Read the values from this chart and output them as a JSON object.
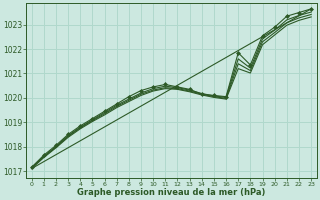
{
  "background_color": "#cce8e0",
  "line_color": "#2d5a27",
  "grid_color": "#b0d8cc",
  "xlabel": "Graphe pression niveau de la mer (hPa)",
  "xlim": [
    -0.5,
    23.5
  ],
  "ylim": [
    1016.7,
    1023.9
  ],
  "yticks": [
    1017,
    1018,
    1019,
    1020,
    1021,
    1022,
    1023
  ],
  "xticks": [
    0,
    1,
    2,
    3,
    4,
    5,
    6,
    7,
    8,
    9,
    10,
    11,
    12,
    13,
    14,
    15,
    16,
    17,
    18,
    19,
    20,
    21,
    22,
    23
  ],
  "series": [
    {
      "x": [
        0,
        1,
        2,
        3,
        4,
        5,
        6,
        7,
        8,
        9,
        10,
        11,
        12,
        13,
        14,
        15,
        16,
        17,
        18,
        19,
        20,
        21,
        22,
        23
      ],
      "y": [
        1017.15,
        1017.65,
        1018.05,
        1018.5,
        1018.85,
        1019.15,
        1019.45,
        1019.75,
        1020.05,
        1020.3,
        1020.45,
        1020.55,
        1020.45,
        1020.35,
        1020.15,
        1020.1,
        1020.05,
        1021.85,
        1021.35,
        1022.55,
        1022.9,
        1023.35,
        1023.5,
        1023.65
      ],
      "marker": true
    },
    {
      "x": [
        0,
        1,
        2,
        3,
        4,
        5,
        6,
        7,
        8,
        9,
        10,
        11,
        12,
        13,
        14,
        15,
        16,
        17,
        18,
        19,
        20,
        21,
        22,
        23
      ],
      "y": [
        1017.15,
        1017.6,
        1018.0,
        1018.45,
        1018.8,
        1019.1,
        1019.4,
        1019.7,
        1019.95,
        1020.2,
        1020.38,
        1020.48,
        1020.42,
        1020.32,
        1020.18,
        1020.08,
        1020.02,
        1021.6,
        1021.22,
        1022.42,
        1022.78,
        1023.2,
        1023.38,
        1023.52
      ],
      "marker": false
    },
    {
      "x": [
        0,
        1,
        2,
        3,
        4,
        5,
        6,
        7,
        8,
        9,
        10,
        11,
        12,
        13,
        14,
        15,
        16,
        17,
        18,
        19,
        20,
        21,
        22,
        23
      ],
      "y": [
        1017.12,
        1017.58,
        1017.98,
        1018.42,
        1018.77,
        1019.07,
        1019.35,
        1019.65,
        1019.9,
        1020.15,
        1020.32,
        1020.42,
        1020.38,
        1020.28,
        1020.15,
        1020.05,
        1019.98,
        1021.4,
        1021.12,
        1022.3,
        1022.68,
        1023.08,
        1023.28,
        1023.42
      ],
      "marker": false
    },
    {
      "x": [
        0,
        1,
        2,
        3,
        4,
        5,
        6,
        7,
        8,
        9,
        10,
        11,
        12,
        13,
        14,
        15,
        16,
        17,
        18,
        19,
        20,
        21,
        22,
        23
      ],
      "y": [
        1017.1,
        1017.55,
        1017.95,
        1018.38,
        1018.73,
        1019.03,
        1019.3,
        1019.6,
        1019.85,
        1020.1,
        1020.28,
        1020.38,
        1020.35,
        1020.25,
        1020.12,
        1020.02,
        1019.95,
        1021.2,
        1021.02,
        1022.18,
        1022.58,
        1022.98,
        1023.18,
        1023.32
      ],
      "marker": false
    },
    {
      "x": [
        0,
        23
      ],
      "y": [
        1017.1,
        1023.65
      ],
      "marker": false,
      "straight": true
    }
  ]
}
